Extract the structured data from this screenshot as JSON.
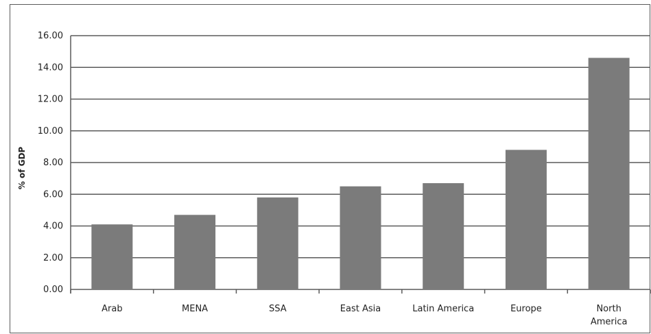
{
  "chart_data": {
    "type": "bar",
    "title": "",
    "xlabel": "",
    "ylabel": "% of GDP",
    "ylim": [
      0,
      16
    ],
    "ytick_labels": [
      "0.00",
      "2.00",
      "4.00",
      "6.00",
      "8.00",
      "10.00",
      "12.00",
      "14.00",
      "16.00"
    ],
    "categories": [
      [
        "Arab"
      ],
      [
        "MENA"
      ],
      [
        "SSA"
      ],
      [
        "East Asia"
      ],
      [
        "Latin America"
      ],
      [
        "Europe"
      ],
      [
        "North",
        "America"
      ]
    ],
    "values": [
      4.1,
      4.7,
      5.8,
      6.5,
      6.7,
      8.8,
      14.6
    ],
    "grid": true,
    "legend": "none",
    "colors": {
      "bar": "#7b7b7b",
      "grid": "#5a5a5a",
      "text": "#222222"
    }
  }
}
